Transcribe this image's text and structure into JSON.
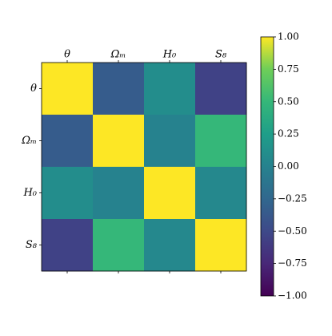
{
  "chart_data": {
    "type": "heatmap",
    "categories": [
      "θ",
      "Ωₘ",
      "H₀",
      "S₈"
    ],
    "values": [
      [
        1,
        -0.35,
        0.1,
        -0.55
      ],
      [
        -0.35,
        1,
        0.0,
        0.5
      ],
      [
        0.1,
        0.0,
        1,
        0.05
      ],
      [
        -0.55,
        0.5,
        0.05,
        1
      ]
    ],
    "colormap": "viridis",
    "zlim": [
      -1,
      1
    ],
    "zticks": [
      {
        "value": 1,
        "label": "1.00"
      },
      {
        "value": 0.75,
        "label": "0.75"
      },
      {
        "value": 0.5,
        "label": "0.50"
      },
      {
        "value": 0.25,
        "label": "0.25"
      },
      {
        "value": 0,
        "label": "0.00"
      },
      {
        "value": -0.25,
        "label": "−0.25"
      },
      {
        "value": -0.5,
        "label": "−0.50"
      },
      {
        "value": -0.75,
        "label": "−0.75"
      },
      {
        "value": -1,
        "label": "−1.00"
      }
    ]
  }
}
